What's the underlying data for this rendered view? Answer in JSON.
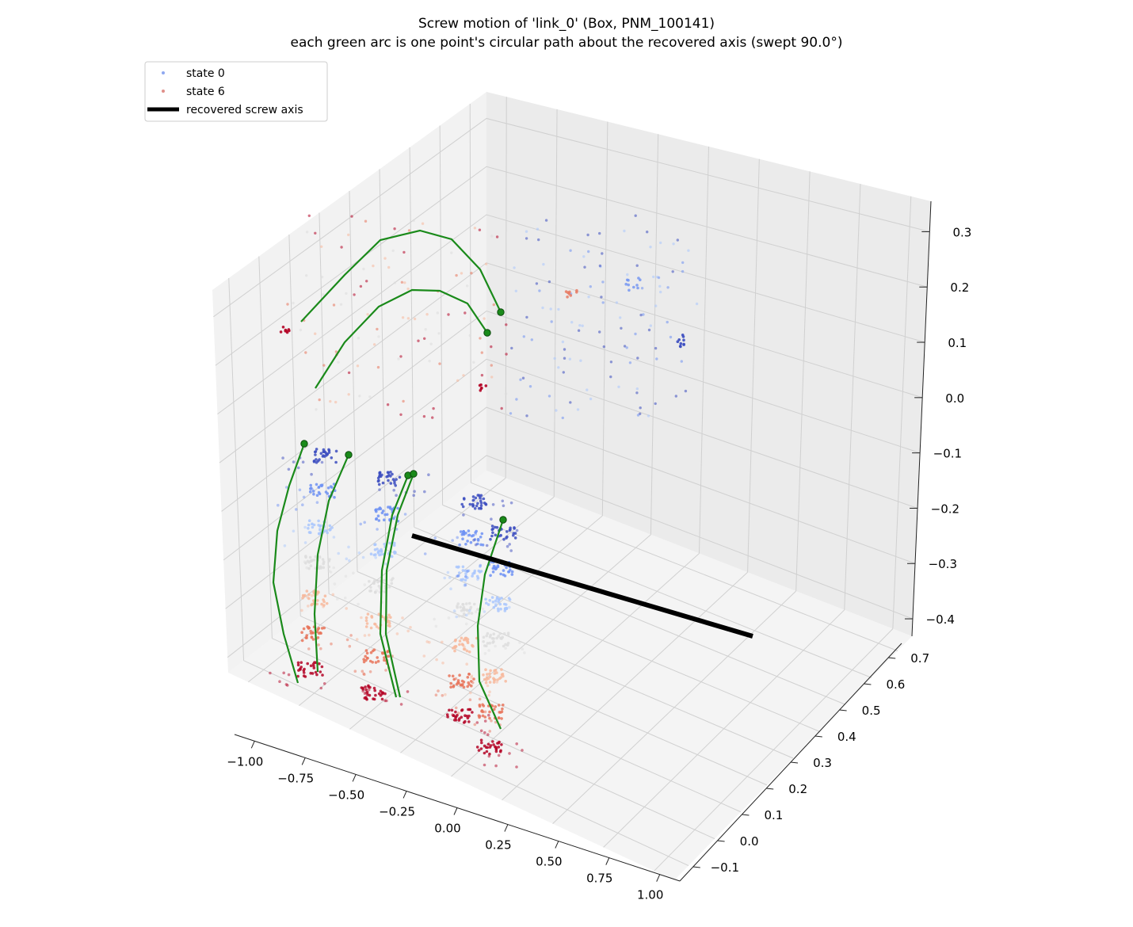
{
  "chart_data": {
    "type": "scatter",
    "title": "Screw motion of 'link_0' (Box, PNM_100141)",
    "subtitle": "each green arc is one point's circular path about the recovered axis  (swept 90.0°)",
    "legend": {
      "placement": "top-left",
      "entries": [
        {
          "label": "state 0",
          "color": "#8fa8f0",
          "kind": "marker"
        },
        {
          "label": "state 6",
          "color": "#e0908a",
          "kind": "marker"
        },
        {
          "label": "recovered screw axis",
          "color": "#000000",
          "kind": "line"
        }
      ]
    },
    "axes": {
      "x": {
        "ticks": [
          "−1.00",
          "−0.75",
          "−0.50",
          "−0.25",
          "0.00",
          "0.25",
          "0.50",
          "0.75",
          "1.00"
        ],
        "lim": [
          -1.1,
          1.1
        ]
      },
      "y": {
        "ticks": [
          "−0.1",
          "0.0",
          "0.1",
          "0.2",
          "0.3",
          "0.4",
          "0.5",
          "0.6",
          "0.7"
        ],
        "lim": [
          -0.12,
          0.72
        ]
      },
      "z": {
        "ticks": [
          "−0.4",
          "−0.3",
          "−0.2",
          "−0.1",
          "0.0",
          "0.1",
          "0.2",
          "0.3"
        ],
        "lim": [
          -0.47,
          0.33
        ]
      },
      "grid": true
    },
    "screw_axis": {
      "from": [
        -0.05,
        0.62,
        -0.29
      ],
      "to": [
        0.85,
        0.2,
        -0.29
      ]
    },
    "arcs": [
      {
        "start": [
          -0.55,
          0.28,
          -0.07
        ],
        "end": [
          -0.65,
          0.28,
          0.12
        ],
        "peak_height": 0.26
      },
      {
        "start": [
          -0.55,
          0.35,
          -0.07
        ],
        "end": [
          -0.45,
          0.35,
          0.12
        ],
        "peak_height": 0.22
      },
      {
        "start": [
          -0.1,
          0.3,
          -0.14
        ],
        "end": [
          -0.1,
          0.3,
          0.05
        ],
        "peak_height": 0.2
      },
      {
        "start": [
          0.15,
          0.3,
          -0.21
        ],
        "end": [
          0.15,
          0.3,
          -0.02
        ],
        "peak_height": 0.15
      }
    ],
    "state_colors": {
      "state_0": "#3b4cc0",
      "mid": "#dddddd",
      "state_6": "#b40426"
    }
  }
}
